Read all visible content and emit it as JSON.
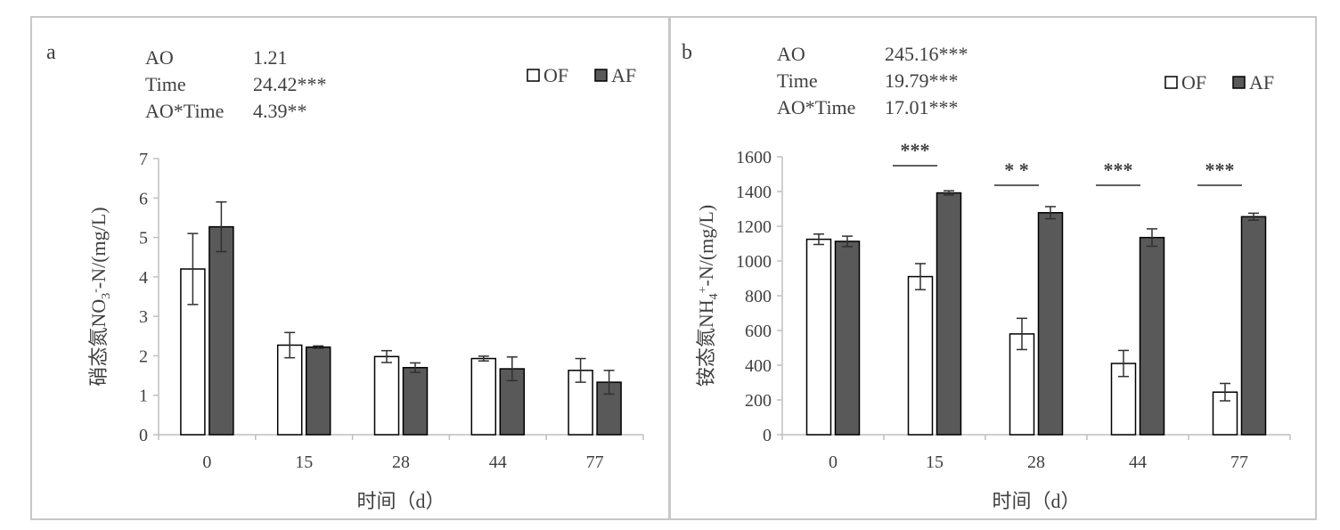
{
  "chart_data": [
    {
      "type": "bar",
      "panel_label": "a",
      "categories": [
        "0",
        "15",
        "28",
        "44",
        "77"
      ],
      "series": [
        {
          "name": "OF",
          "values": [
            4.2,
            2.27,
            1.98,
            1.93,
            1.63
          ],
          "errors": [
            0.9,
            0.32,
            0.15,
            0.06,
            0.3
          ],
          "color": "#ffffff"
        },
        {
          "name": "AF",
          "values": [
            5.27,
            2.22,
            1.7,
            1.67,
            1.33
          ],
          "errors": [
            0.63,
            0.03,
            0.12,
            0.3,
            0.3
          ],
          "color": "#595959"
        }
      ],
      "ylim": [
        0,
        7
      ],
      "yticks": [
        "0",
        "1",
        "2",
        "3",
        "4",
        "5",
        "6",
        "7"
      ],
      "ylabel_main": "硝态氮NO",
      "ylabel_sub": "3",
      "ylabel_sup": "-",
      "ylabel_tail": "-N/(mg/L)",
      "xlabel": "时间（d）",
      "stats": [
        {
          "label": "AO",
          "value": "1.21"
        },
        {
          "label": "Time",
          "value": "24.42***"
        },
        {
          "label": "AO*Time",
          "value": "4.39**"
        }
      ],
      "significance": [],
      "legend_position": "top-right"
    },
    {
      "type": "bar",
      "panel_label": "b",
      "categories": [
        "0",
        "15",
        "28",
        "44",
        "77"
      ],
      "series": [
        {
          "name": "OF",
          "values": [
            1125,
            910,
            580,
            410,
            245
          ],
          "errors": [
            30,
            75,
            90,
            75,
            50
          ],
          "color": "#ffffff"
        },
        {
          "name": "AF",
          "values": [
            1113,
            1392,
            1278,
            1135,
            1255
          ],
          "errors": [
            30,
            12,
            35,
            50,
            20
          ],
          "color": "#595959"
        }
      ],
      "ylim": [
        0,
        1600
      ],
      "yticks": [
        "0",
        "200",
        "400",
        "600",
        "800",
        "1000",
        "1200",
        "1400",
        "1600"
      ],
      "ylabel_main": "铵态氮NH",
      "ylabel_sub": "4",
      "ylabel_sup": "+",
      "ylabel_tail": "-N/(mg/L)",
      "xlabel": "时间（d）",
      "stats": [
        {
          "label": "AO",
          "value": "245.16***"
        },
        {
          "label": "Time",
          "value": "19.79***"
        },
        {
          "label": "AO*Time",
          "value": "17.01***"
        }
      ],
      "significance": [
        {
          "category_index": 1,
          "text": "***"
        },
        {
          "category_index": 2,
          "text": "*  *"
        },
        {
          "category_index": 3,
          "text": "***"
        },
        {
          "category_index": 4,
          "text": "***"
        }
      ],
      "legend_position": "top-right"
    }
  ]
}
